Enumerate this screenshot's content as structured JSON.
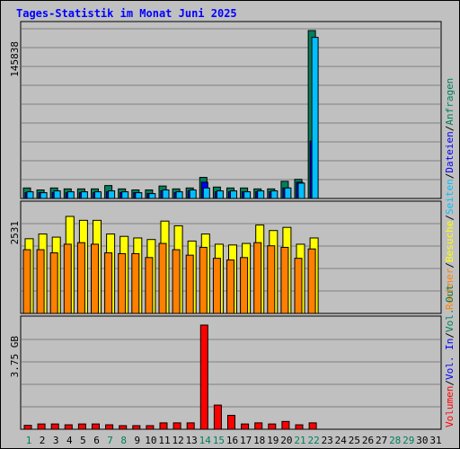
{
  "title": "Tages-Statistik im Monat Juni 2025",
  "colors": {
    "background": "#c0c0c0",
    "frame": "#000000",
    "grid": "#808080",
    "title": "#0000ff",
    "anfragen": "#00805c",
    "dateien": "#0000ff",
    "seiten": "#00c0ff",
    "besuche": "#ffff00",
    "rechner": "#ff8000",
    "volumen": "#ff0000",
    "day_normal": "#000000",
    "day_weekend": "#00805c"
  },
  "chart_data": [
    {
      "type": "bar",
      "panel": "top",
      "axis_max_label": "145838",
      "ymax": 145838,
      "categories": [
        "1",
        "2",
        "3",
        "4",
        "5",
        "6",
        "7",
        "8",
        "9",
        "10",
        "11",
        "12",
        "13",
        "14",
        "15",
        "16",
        "17",
        "18",
        "19",
        "20",
        "21",
        "22",
        "23",
        "24",
        "25",
        "26",
        "27",
        "28",
        "29",
        "30",
        "31"
      ],
      "legend": [
        {
          "key": "anfragen",
          "label": "Anfragen"
        },
        {
          "key": "dateien",
          "label": "Dateien"
        },
        {
          "key": "seiten",
          "label": "Seiten"
        }
      ],
      "series": [
        {
          "key": "anfragen",
          "values": [
            9100,
            7400,
            9100,
            8300,
            8300,
            8300,
            11200,
            8300,
            7400,
            7400,
            10800,
            8300,
            9100,
            18300,
            9900,
            9100,
            9100,
            8300,
            8300,
            14900,
            16600,
            145838,
            0,
            0,
            0,
            0,
            0,
            0,
            0,
            0,
            0
          ]
        },
        {
          "key": "dateien",
          "values": [
            5000,
            5000,
            5000,
            5000,
            5000,
            5000,
            5800,
            5000,
            5000,
            4200,
            6600,
            5000,
            6600,
            14100,
            5800,
            5800,
            5800,
            5800,
            5800,
            9100,
            14100,
            49800,
            0,
            0,
            0,
            0,
            0,
            0,
            0,
            0,
            0
          ]
        },
        {
          "key": "seiten",
          "values": [
            5800,
            5000,
            6600,
            5800,
            5800,
            5800,
            6600,
            5800,
            5000,
            4200,
            7400,
            5800,
            7400,
            9100,
            6600,
            6600,
            5800,
            6600,
            6600,
            9100,
            13300,
            139900,
            0,
            0,
            0,
            0,
            0,
            0,
            0,
            0,
            0
          ]
        }
      ]
    },
    {
      "type": "bar",
      "panel": "middle",
      "axis_max_label": "2531",
      "ymax": 2531,
      "categories": [
        "1",
        "2",
        "3",
        "4",
        "5",
        "6",
        "7",
        "8",
        "9",
        "10",
        "11",
        "12",
        "13",
        "14",
        "15",
        "16",
        "17",
        "18",
        "19",
        "20",
        "21",
        "22",
        "23",
        "24",
        "25",
        "26",
        "27",
        "28",
        "29",
        "30",
        "31"
      ],
      "legend": [
        {
          "key": "besuche",
          "label": "Besuche"
        },
        {
          "key": "rechner",
          "label": "Rechner"
        }
      ],
      "series": [
        {
          "key": "besuche",
          "values": [
            1830,
            1946,
            1869,
            2377,
            2281,
            2281,
            1946,
            1888,
            1849,
            1811,
            2262,
            2147,
            1773,
            1946,
            1696,
            1677,
            1715,
            2166,
            2031,
            2108,
            1696,
            1849,
            0,
            0,
            0,
            0,
            0,
            0,
            0,
            0,
            0
          ]
        },
        {
          "key": "rechner",
          "values": [
            1561,
            1561,
            1484,
            1696,
            1734,
            1696,
            1484,
            1465,
            1465,
            1369,
            1715,
            1561,
            1427,
            1619,
            1350,
            1311,
            1369,
            1734,
            1657,
            1619,
            1350,
            1580,
            0,
            0,
            0,
            0,
            0,
            0,
            0,
            0,
            0
          ]
        }
      ]
    },
    {
      "type": "bar",
      "panel": "bottom",
      "axis_max_label": "3.75 GB",
      "ymax": 3.75,
      "unit": "GB",
      "categories": [
        "1",
        "2",
        "3",
        "4",
        "5",
        "6",
        "7",
        "8",
        "9",
        "10",
        "11",
        "12",
        "13",
        "14",
        "15",
        "16",
        "17",
        "18",
        "19",
        "20",
        "21",
        "22",
        "23",
        "24",
        "25",
        "26",
        "27",
        "28",
        "29",
        "30",
        "31"
      ],
      "legend": [
        {
          "key": "volumen",
          "label": "Volumen"
        },
        {
          "key": "in",
          "label": "Vol. In"
        },
        {
          "key": "out",
          "label": "Vol. Out"
        }
      ],
      "series": [
        {
          "key": "volumen",
          "values": [
            0.14,
            0.19,
            0.19,
            0.16,
            0.19,
            0.19,
            0.16,
            0.12,
            0.12,
            0.12,
            0.23,
            0.23,
            0.23,
            3.75,
            0.87,
            0.5,
            0.19,
            0.23,
            0.19,
            0.28,
            0.16,
            0.23,
            0,
            0,
            0,
            0,
            0,
            0,
            0,
            0,
            0
          ]
        }
      ]
    }
  ],
  "x_days": [
    {
      "label": "1",
      "weekend": true
    },
    {
      "label": "2",
      "weekend": false
    },
    {
      "label": "3",
      "weekend": false
    },
    {
      "label": "4",
      "weekend": false
    },
    {
      "label": "5",
      "weekend": false
    },
    {
      "label": "6",
      "weekend": false
    },
    {
      "label": "7",
      "weekend": true
    },
    {
      "label": "8",
      "weekend": true
    },
    {
      "label": "9",
      "weekend": false
    },
    {
      "label": "10",
      "weekend": false
    },
    {
      "label": "11",
      "weekend": false
    },
    {
      "label": "12",
      "weekend": false
    },
    {
      "label": "13",
      "weekend": false
    },
    {
      "label": "14",
      "weekend": true
    },
    {
      "label": "15",
      "weekend": true
    },
    {
      "label": "16",
      "weekend": false
    },
    {
      "label": "17",
      "weekend": false
    },
    {
      "label": "18",
      "weekend": false
    },
    {
      "label": "19",
      "weekend": false
    },
    {
      "label": "20",
      "weekend": false
    },
    {
      "label": "21",
      "weekend": true
    },
    {
      "label": "22",
      "weekend": true
    },
    {
      "label": "23",
      "weekend": false
    },
    {
      "label": "24",
      "weekend": false
    },
    {
      "label": "25",
      "weekend": false
    },
    {
      "label": "26",
      "weekend": false
    },
    {
      "label": "27",
      "weekend": false
    },
    {
      "label": "28",
      "weekend": true
    },
    {
      "label": "29",
      "weekend": true
    },
    {
      "label": "30",
      "weekend": false
    },
    {
      "label": "31",
      "weekend": false
    }
  ]
}
